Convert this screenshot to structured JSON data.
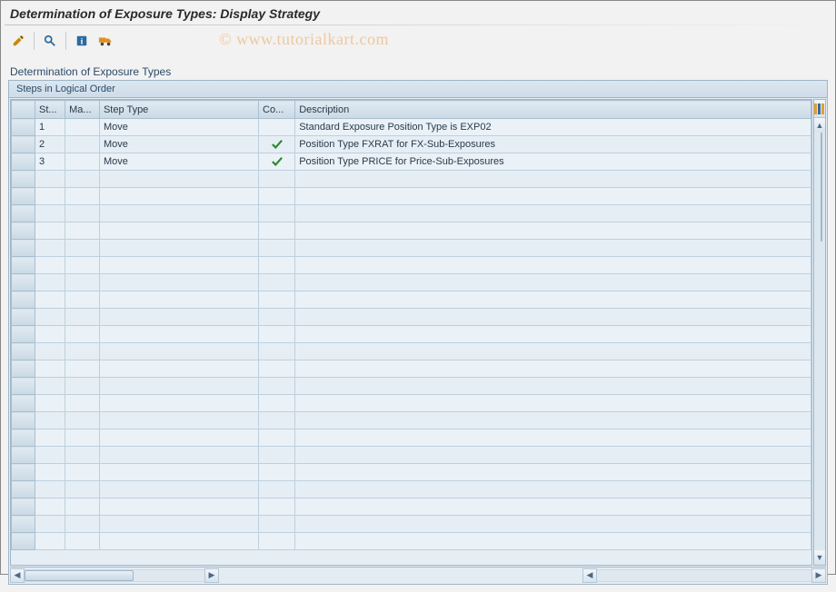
{
  "title": "Determination of Exposure Types: Display Strategy",
  "watermark": "© www.tutorialkart.com",
  "toolbar": {
    "edit_icon": "pencil-icon",
    "find_icon": "magnifier-icon",
    "info_icon": "info-icon",
    "transport_icon": "truck-icon"
  },
  "section_title": "Determination of Exposure Types",
  "panel_title": "Steps in Logical Order",
  "columns": {
    "st": "St...",
    "ma": "Ma...",
    "step_type": "Step Type",
    "co": "Co...",
    "description": "Description"
  },
  "column_widths": {
    "rowhdr": 22,
    "st": 28,
    "ma": 32,
    "step_type": 148,
    "co": 34,
    "description": 480
  },
  "rows": [
    {
      "st": "1",
      "ma": "",
      "step_type": "Move",
      "co": "",
      "description": "Standard Exposure Position Type is EXP02"
    },
    {
      "st": "2",
      "ma": "",
      "step_type": "Move",
      "co": "check",
      "description": "Position Type FXRAT for FX-Sub-Exposures"
    },
    {
      "st": "3",
      "ma": "",
      "step_type": "Move",
      "co": "check",
      "description": "Position Type PRICE for Price-Sub-Exposures"
    }
  ],
  "empty_rows": 22,
  "colors": {
    "header_grad_top": "#e0eaf1",
    "header_grad_bot": "#cad9e5",
    "cell_bg": "#e6eef5",
    "border": "#9fb6c8",
    "check_color": "#2a8a2a"
  }
}
